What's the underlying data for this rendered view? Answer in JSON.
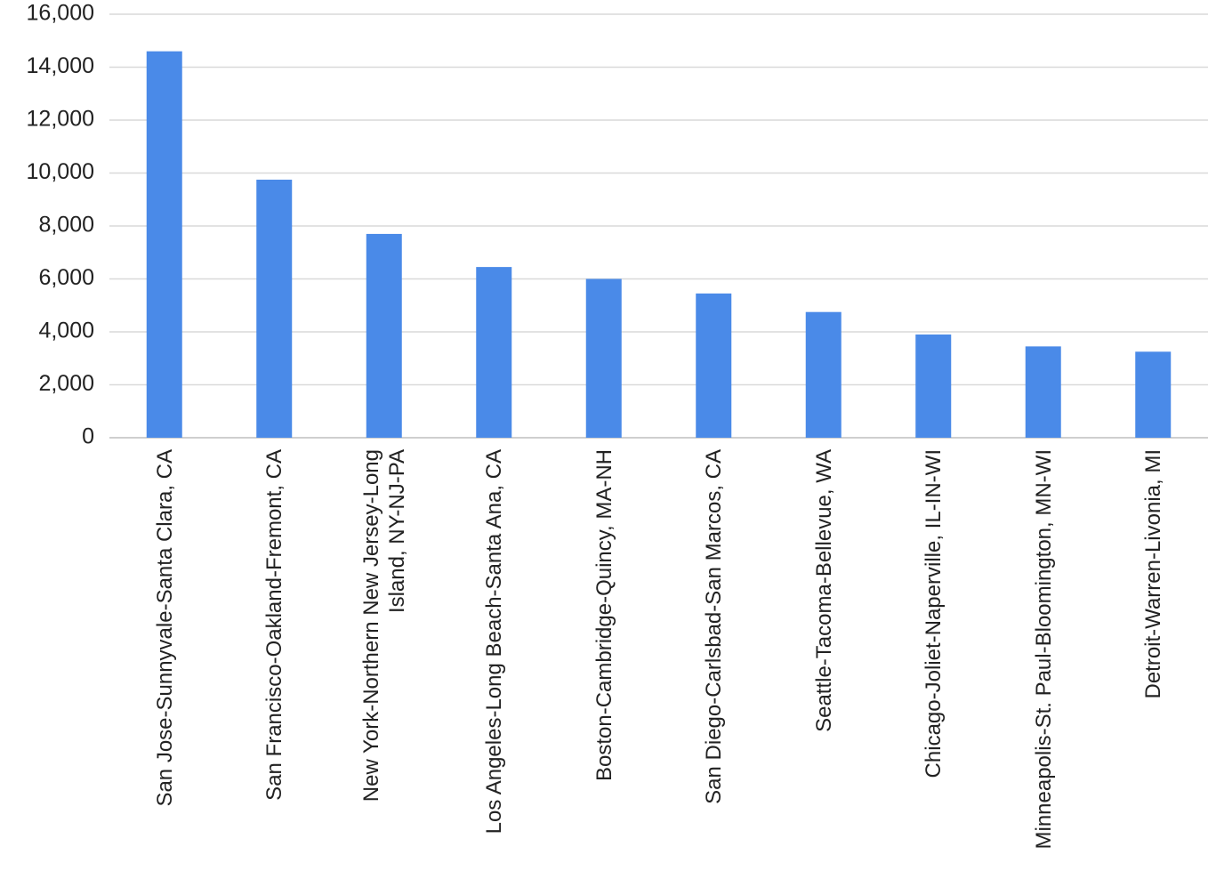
{
  "chart_data": {
    "type": "bar",
    "categories": [
      "San Jose-Sunnyvale-Santa Clara, CA",
      "San Francisco-Oakland-Fremont, CA",
      "New York-Northern New Jersey-Long Island, NY-NJ-PA",
      "Los Angeles-Long Beach-Santa Ana, CA",
      "Boston-Cambridge-Quincy, MA-NH",
      "San Diego-Carlsbad-San Marcos, CA",
      "Seattle-Tacoma-Bellevue, WA",
      "Chicago-Joliet-Naperville, IL-IN-WI",
      "Minneapolis-St. Paul-Bloomington, MN-WI",
      "Detroit-Warren-Livonia, MI"
    ],
    "values": [
      14600,
      9750,
      7700,
      6450,
      6000,
      5450,
      4750,
      3900,
      3450,
      3250
    ],
    "color": "#4a8ae8",
    "ylim": [
      0,
      16000
    ],
    "yticks": [
      0,
      {
        "value": 2000,
        "label": "2,000"
      },
      {
        "value": 4000,
        "label": "4,000"
      },
      {
        "value": 6000,
        "label": "6,000"
      },
      {
        "value": 8000,
        "label": "8,000"
      },
      {
        "value": 10000,
        "label": "10,000"
      },
      {
        "value": 12000,
        "label": "12,000"
      },
      {
        "value": 14000,
        "label": "14,000"
      },
      {
        "value": 16000,
        "label": "16,000"
      }
    ],
    "grid": true
  }
}
